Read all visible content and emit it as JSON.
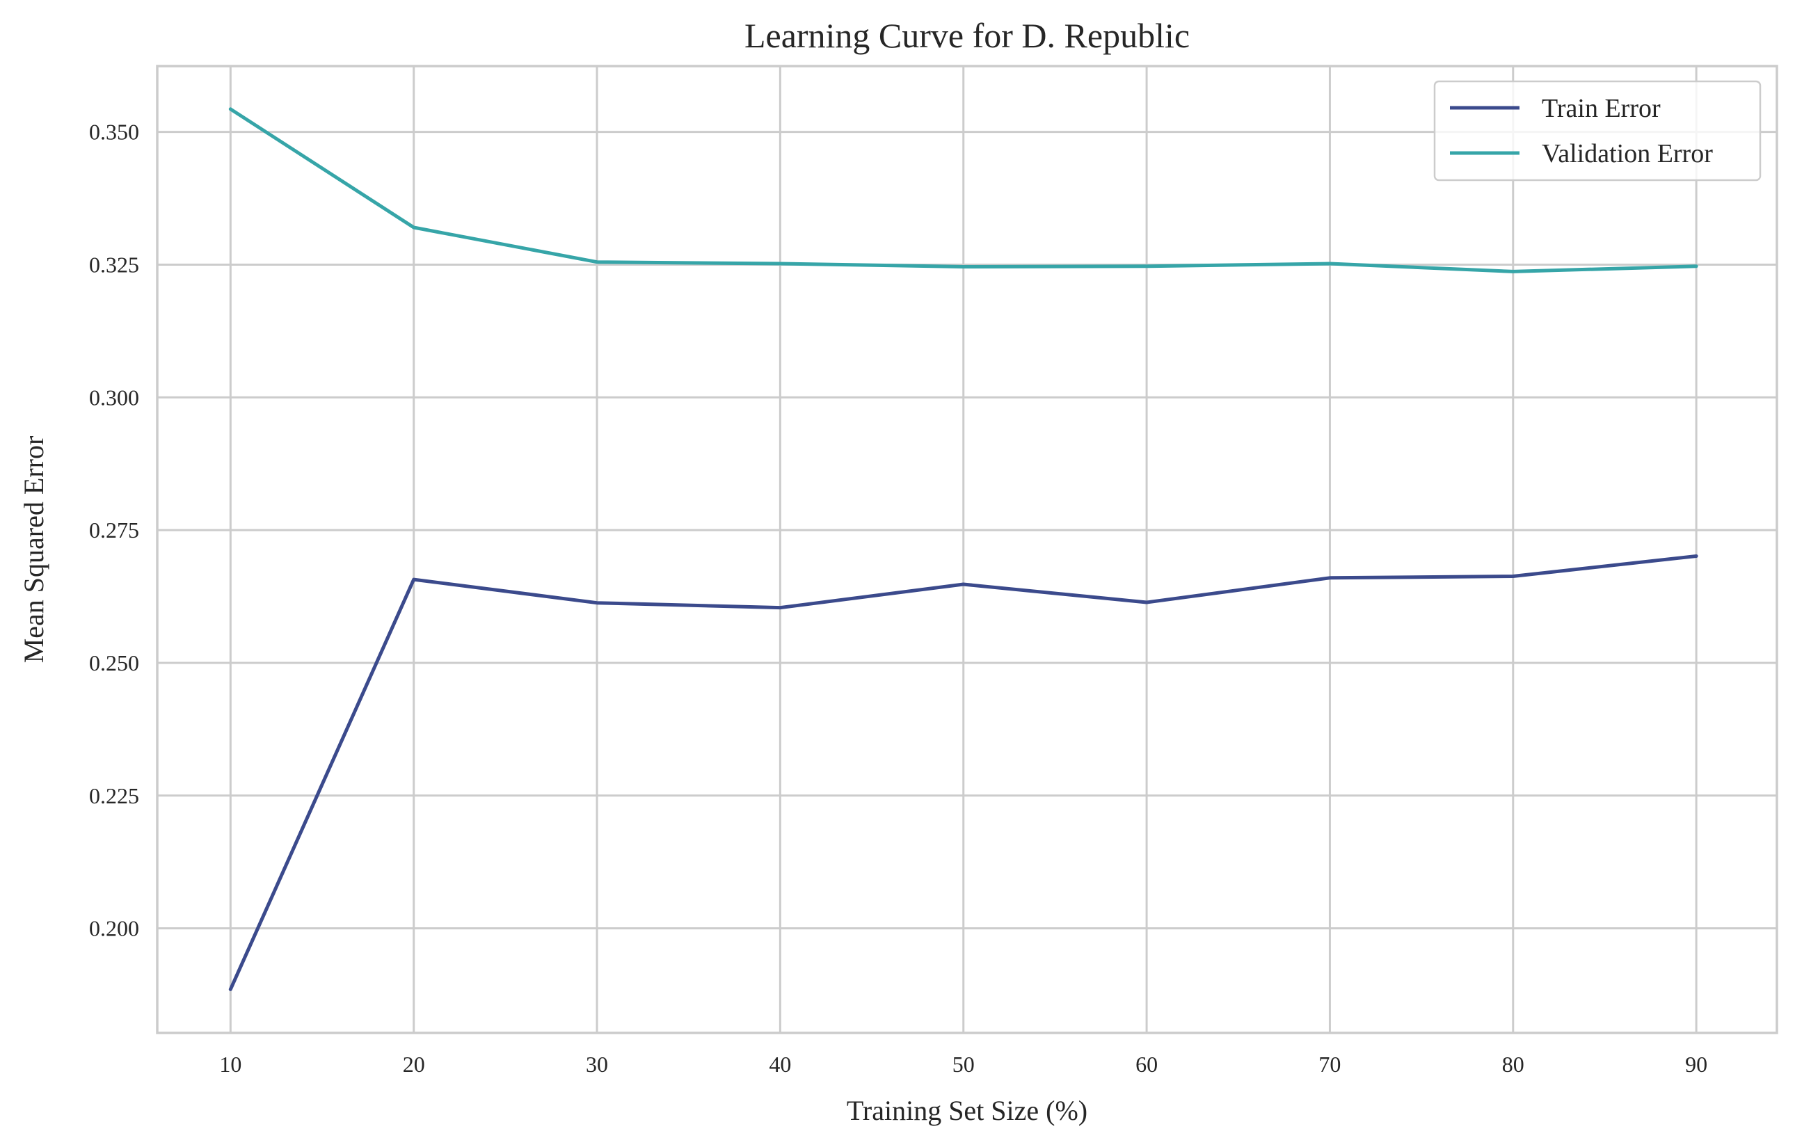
{
  "chart_data": {
    "type": "line",
    "title": "Learning Curve for D. Republic",
    "xlabel": "Training Set Size (%)",
    "ylabel": "Mean Squared Error",
    "x": [
      10,
      20,
      30,
      40,
      50,
      60,
      70,
      80,
      90
    ],
    "xticks": [
      10,
      20,
      30,
      40,
      50,
      60,
      70,
      80,
      90
    ],
    "yticks": [
      0.2,
      0.225,
      0.25,
      0.275,
      0.3,
      0.325,
      0.35
    ],
    "ytick_labels": [
      "0.200",
      "0.225",
      "0.250",
      "0.275",
      "0.300",
      "0.325",
      "0.350"
    ],
    "xlim": [
      6,
      94.4
    ],
    "ylim": [
      0.1803,
      0.3624
    ],
    "grid": true,
    "legend_position": "top-right",
    "series": [
      {
        "name": "Train Error",
        "color": "#3b4a8c",
        "values": [
          0.1885,
          0.2657,
          0.2613,
          0.2604,
          0.2648,
          0.2614,
          0.266,
          0.2663,
          0.2701
        ]
      },
      {
        "name": "Validation Error",
        "color": "#36a5a8",
        "values": [
          0.3543,
          0.332,
          0.3255,
          0.3252,
          0.3246,
          0.3247,
          0.3252,
          0.3237,
          0.3247
        ]
      }
    ]
  }
}
